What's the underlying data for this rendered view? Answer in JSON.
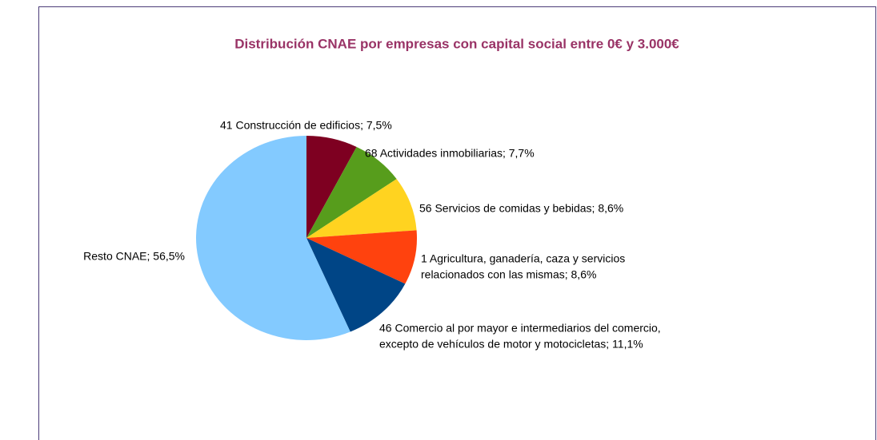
{
  "chart_data": {
    "type": "pie",
    "title": "Distribución CNAE por empresas con capital social entre 0€ y 3.000€",
    "labels": [
      [
        "41 Construcción de edificios; 7,5%"
      ],
      [
        "68 Actividades inmobiliarias; 7,7%"
      ],
      [
        "56 Servicios de comidas y bebidas; 8,6%"
      ],
      [
        "1 Agricultura, ganadería, caza y servicios",
        "relacionados con las mismas; 8,6%"
      ],
      [
        "46 Comercio al por mayor e intermediarios del comercio,",
        "excepto de vehículos de motor y motocicletas; 11,1%"
      ],
      [
        "Resto CNAE; 56,5%"
      ]
    ],
    "values": [
      7.5,
      7.7,
      8.6,
      8.6,
      11.1,
      56.5
    ],
    "colors": [
      "#7e0021",
      "#579d1c",
      "#ffd320",
      "#ff420e",
      "#004586",
      "#83caff"
    ]
  }
}
